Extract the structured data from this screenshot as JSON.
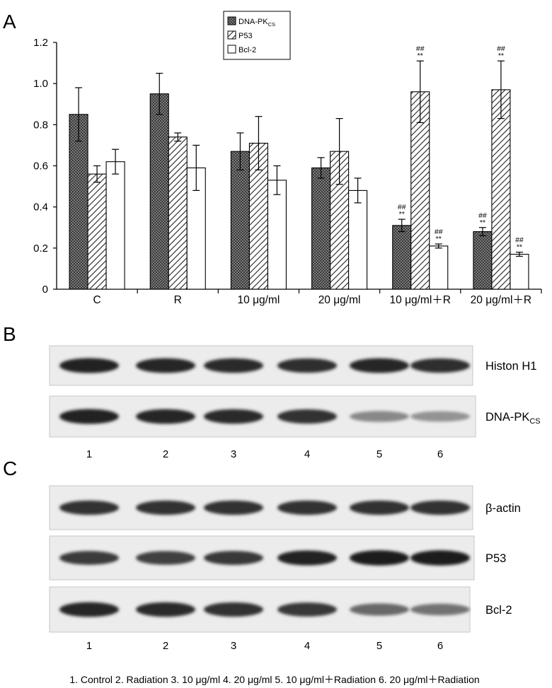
{
  "panels": {
    "A": "A",
    "B": "B",
    "C": "C"
  },
  "chart_data": {
    "type": "bar",
    "title": "",
    "xlabel": "",
    "ylabel": "",
    "ylim": [
      0,
      1.2
    ],
    "yticks": [
      "0",
      "0.2",
      "0.4",
      "0.6",
      "0.8",
      "1.0",
      "1.2"
    ],
    "categories": [
      "C",
      "R",
      "10 μg/ml",
      "20 μg/ml",
      "10 μg/ml＋R",
      "20 μg/ml＋R"
    ],
    "legend_position": "top-center",
    "series": [
      {
        "name": "DNA-PK",
        "name_subscript": "CS",
        "pattern": "dense-cross",
        "values": [
          0.85,
          0.95,
          0.67,
          0.59,
          0.31,
          0.28
        ],
        "errors": [
          0.13,
          0.1,
          0.09,
          0.05,
          0.03,
          0.02
        ],
        "significance": [
          [],
          [],
          [],
          [],
          [
            "##",
            "**"
          ],
          [
            "##",
            "**"
          ]
        ]
      },
      {
        "name": "P53",
        "pattern": "diagonal-hatch",
        "values": [
          0.56,
          0.74,
          0.71,
          0.67,
          0.96,
          0.97
        ],
        "errors": [
          0.04,
          0.02,
          0.13,
          0.16,
          0.15,
          0.14
        ],
        "significance": [
          [],
          [],
          [],
          [],
          [
            "##",
            "**"
          ],
          [
            "##",
            "**"
          ]
        ]
      },
      {
        "name": "Bcl-2",
        "pattern": "open",
        "values": [
          0.62,
          0.59,
          0.53,
          0.48,
          0.21,
          0.17
        ],
        "errors": [
          0.06,
          0.11,
          0.07,
          0.06,
          0.01,
          0.01
        ],
        "significance": [
          [],
          [],
          [],
          [],
          [
            "##",
            "**"
          ],
          [
            "##",
            "**"
          ]
        ]
      }
    ]
  },
  "blots": {
    "lanes": [
      "1",
      "2",
      "3",
      "4",
      "5",
      "6"
    ],
    "panel_b": [
      {
        "label": "Histon H1",
        "intensity": [
          0.92,
          0.9,
          0.88,
          0.86,
          0.9,
          0.86
        ]
      },
      {
        "label": "DNA-PK",
        "label_sub": "CS",
        "intensity": [
          0.92,
          0.9,
          0.88,
          0.85,
          0.45,
          0.4
        ]
      }
    ],
    "panel_c": [
      {
        "label": "β-actin",
        "intensity": [
          0.85,
          0.85,
          0.85,
          0.85,
          0.85,
          0.85
        ]
      },
      {
        "label": "P53",
        "intensity": [
          0.8,
          0.78,
          0.82,
          0.92,
          0.95,
          0.95
        ]
      },
      {
        "label": "Bcl-2",
        "intensity": [
          0.9,
          0.88,
          0.85,
          0.82,
          0.6,
          0.55
        ]
      }
    ]
  },
  "legend_caption": "1. Control  2. Radiation  3. 10 μg/ml  4. 20 μg/ml  5. 10 μg/ml＋Radiation  6. 20 μg/ml＋Radiation",
  "colors": {
    "dna_pk_fill": "#6a6a6a",
    "p53_hatch": "#222222",
    "bcl2_fill": "#ffffff",
    "axis": "#000000",
    "blot_bg": "#ededed",
    "band": "#141414"
  }
}
